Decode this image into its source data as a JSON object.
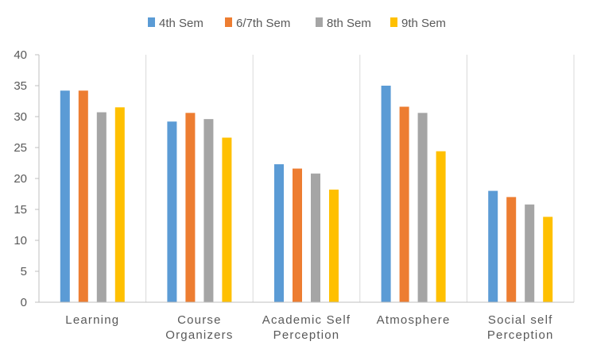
{
  "chart_data": {
    "type": "bar",
    "title": "",
    "xlabel": "",
    "ylabel": "",
    "ylim": [
      0,
      40
    ],
    "yticks": [
      0,
      5,
      10,
      15,
      20,
      25,
      30,
      35,
      40
    ],
    "grid": "vertical category separators only",
    "legend_position": "top-center",
    "categories": [
      [
        "Learning"
      ],
      [
        "Course",
        "Organizers"
      ],
      [
        "Academic Self",
        "Perception"
      ],
      [
        "Atmosphere"
      ],
      [
        "Social self",
        "Perception"
      ]
    ],
    "series": [
      {
        "name": "4th Sem",
        "color": "#5B9BD5",
        "values": [
          34.2,
          29.2,
          22.3,
          35.0,
          18.0
        ]
      },
      {
        "name": "6/7th Sem",
        "color": "#ED7D31",
        "values": [
          34.2,
          30.6,
          21.6,
          31.6,
          17.0
        ]
      },
      {
        "name": "8th Sem",
        "color": "#A5A5A5",
        "values": [
          30.7,
          29.6,
          20.8,
          30.6,
          15.8
        ]
      },
      {
        "name": "9th Sem",
        "color": "#FFC000",
        "values": [
          31.5,
          26.6,
          18.2,
          24.4,
          13.8
        ]
      }
    ]
  }
}
